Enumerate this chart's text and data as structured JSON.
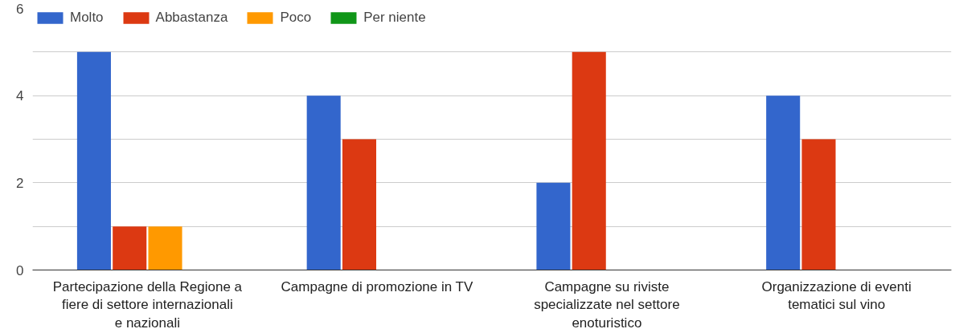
{
  "chart_data": {
    "type": "bar",
    "categories": [
      "Partecipazione della Regione a fiere di settore internazionali e nazionali",
      "Campagne di promozione in TV",
      "Campagne su riviste specializzate nel settore enoturistico",
      "Organizzazione di eventi tematici sul vino"
    ],
    "series": [
      {
        "name": "Molto",
        "color": "#3366cc",
        "values": [
          5,
          4,
          2,
          4
        ]
      },
      {
        "name": "Abbastanza",
        "color": "#dc3912",
        "values": [
          1,
          3,
          5,
          3
        ]
      },
      {
        "name": "Poco",
        "color": "#ff9900",
        "values": [
          1,
          0,
          0,
          0
        ]
      },
      {
        "name": "Per niente",
        "color": "#109618",
        "values": [
          0,
          0,
          0,
          0
        ]
      }
    ],
    "ylim": [
      0,
      6
    ],
    "yticks": [
      0,
      {
        "value": 1,
        "label": null
      },
      2,
      {
        "value": 3,
        "label": null
      },
      4,
      {
        "value": 5,
        "label": null
      },
      6
    ],
    "grid": "y",
    "legend": "top left"
  }
}
